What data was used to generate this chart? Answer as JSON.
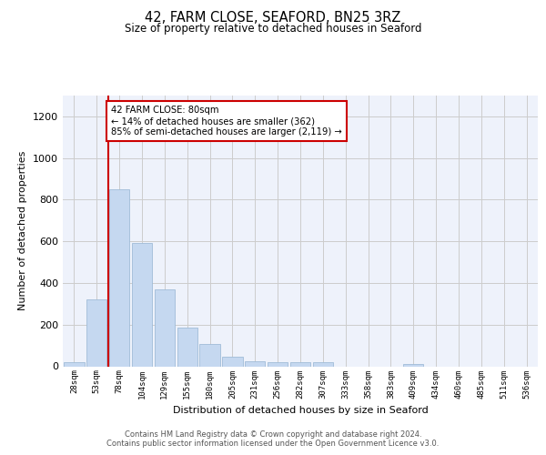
{
  "title": "42, FARM CLOSE, SEAFORD, BN25 3RZ",
  "subtitle": "Size of property relative to detached houses in Seaford",
  "xlabel": "Distribution of detached houses by size in Seaford",
  "ylabel": "Number of detached properties",
  "bar_color": "#c5d8f0",
  "bar_edge_color": "#a0bcd8",
  "categories": [
    "28sqm",
    "53sqm",
    "78sqm",
    "104sqm",
    "129sqm",
    "155sqm",
    "180sqm",
    "205sqm",
    "231sqm",
    "256sqm",
    "282sqm",
    "307sqm",
    "333sqm",
    "358sqm",
    "383sqm",
    "409sqm",
    "434sqm",
    "460sqm",
    "485sqm",
    "511sqm",
    "536sqm"
  ],
  "values": [
    18,
    320,
    850,
    590,
    370,
    185,
    105,
    45,
    22,
    18,
    18,
    18,
    0,
    0,
    0,
    10,
    0,
    0,
    0,
    0,
    0
  ],
  "ylim": [
    0,
    1300
  ],
  "yticks": [
    0,
    200,
    400,
    600,
    800,
    1000,
    1200
  ],
  "annotation_text": "42 FARM CLOSE: 80sqm\n← 14% of detached houses are smaller (362)\n85% of semi-detached houses are larger (2,119) →",
  "annotation_box_color": "#cc0000",
  "footer_line1": "Contains HM Land Registry data © Crown copyright and database right 2024.",
  "footer_line2": "Contains public sector information licensed under the Open Government Licence v3.0.",
  "background_color": "#eef2fb",
  "grid_color": "#cccccc",
  "fig_bg_color": "#ffffff"
}
